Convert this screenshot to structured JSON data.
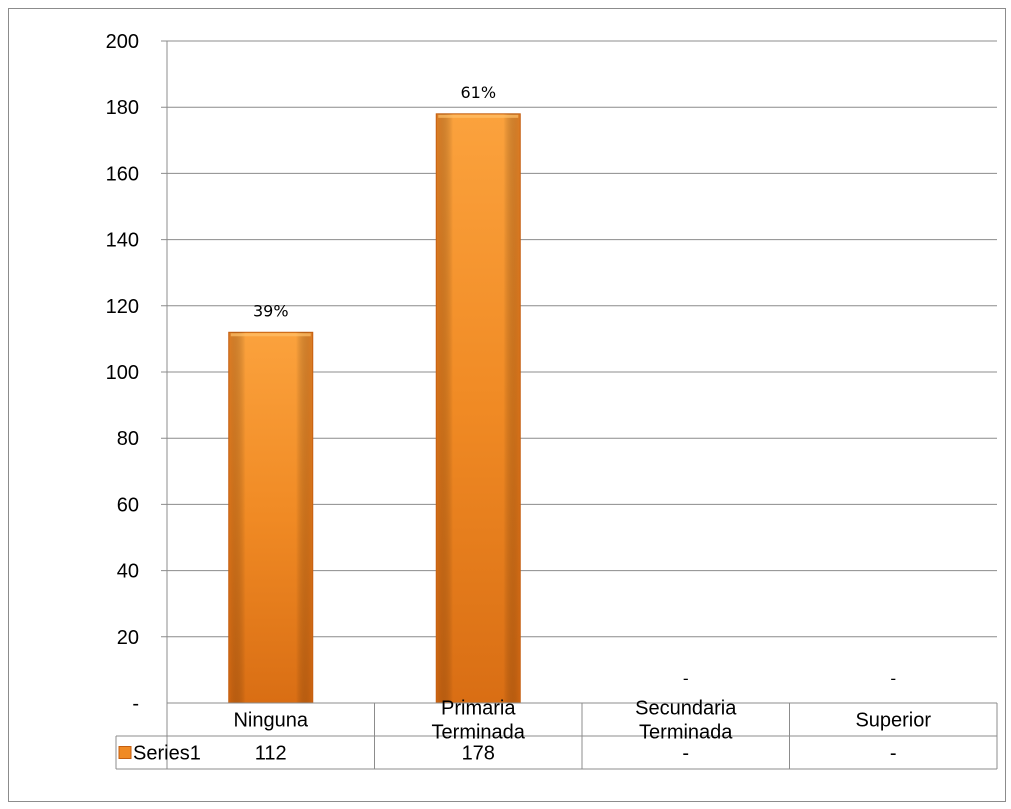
{
  "chart_data": {
    "type": "bar",
    "categories": [
      [
        "Ninguna"
      ],
      [
        "Primaria",
        "Terminada"
      ],
      [
        "Secundaria",
        "Terminada"
      ],
      [
        "Superior"
      ]
    ],
    "series": [
      {
        "name": "Series1",
        "values": [
          112,
          178,
          0,
          0
        ],
        "table_values": [
          "112",
          "178",
          "-",
          "-"
        ],
        "data_labels": [
          "39%",
          "61%",
          "-",
          "-"
        ]
      }
    ],
    "ylim": [
      0,
      200
    ],
    "yticks": [
      0,
      20,
      40,
      60,
      80,
      100,
      120,
      140,
      160,
      180,
      200
    ],
    "ytick_labels": [
      "-",
      "20",
      "40",
      "60",
      "80",
      "100",
      "120",
      "140",
      "160",
      "180",
      "200"
    ],
    "grid": true,
    "data_table": true,
    "colors": {
      "bar": "#f08a24",
      "bar_light": "#fba23d",
      "bar_dark": "#d96e14",
      "grid": "#8c8c8c"
    }
  }
}
